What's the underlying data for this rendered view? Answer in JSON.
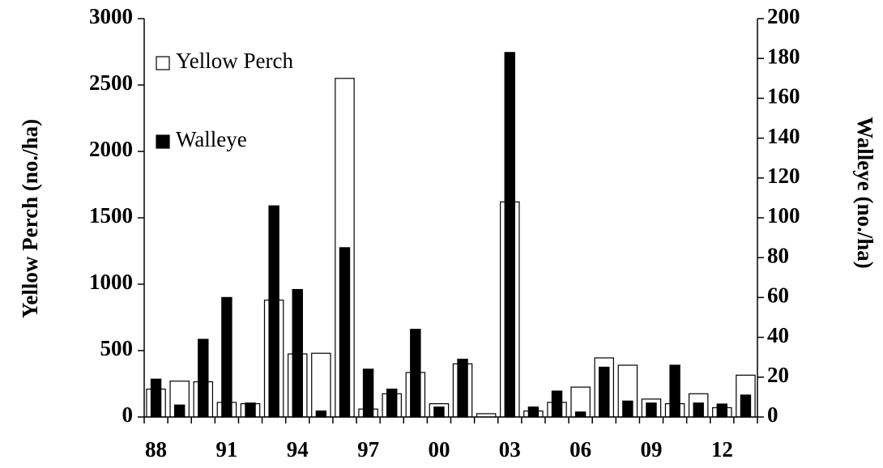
{
  "chart_data": {
    "type": "bar",
    "categories": [
      "88",
      null,
      null,
      "91",
      null,
      null,
      "94",
      null,
      null,
      "97",
      null,
      null,
      "00",
      null,
      null,
      "03",
      null,
      null,
      "06",
      null,
      null,
      "09",
      null,
      null,
      "12",
      null
    ],
    "series": [
      {
        "name": "Yellow Perch",
        "color": "#ffffff",
        "axis": "y",
        "values": [
          210,
          270,
          265,
          110,
          100,
          880,
          475,
          480,
          2550,
          60,
          175,
          335,
          100,
          400,
          25,
          1620,
          45,
          110,
          225,
          445,
          390,
          135,
          100,
          175,
          70,
          315
        ]
      },
      {
        "name": "Walleye",
        "color": "#000000",
        "axis": "y2",
        "values": [
          19,
          6,
          39,
          60,
          7,
          106,
          64,
          3,
          85,
          24,
          14,
          44,
          5,
          29,
          0,
          183,
          5,
          13,
          2.5,
          25,
          8,
          7,
          26,
          7,
          6.5,
          11
        ]
      }
    ],
    "ylabel": "Yellow Perch (no./ha)",
    "y2label": "Walleye (no./ha)",
    "ylim": [
      0,
      3000
    ],
    "yticks": [
      0,
      500,
      1000,
      1500,
      2000,
      2500,
      3000
    ],
    "y2lim": [
      0,
      200
    ],
    "y2ticks": [
      0,
      20,
      40,
      60,
      80,
      100,
      120,
      140,
      160,
      180,
      200
    ],
    "legend": "upper left"
  }
}
